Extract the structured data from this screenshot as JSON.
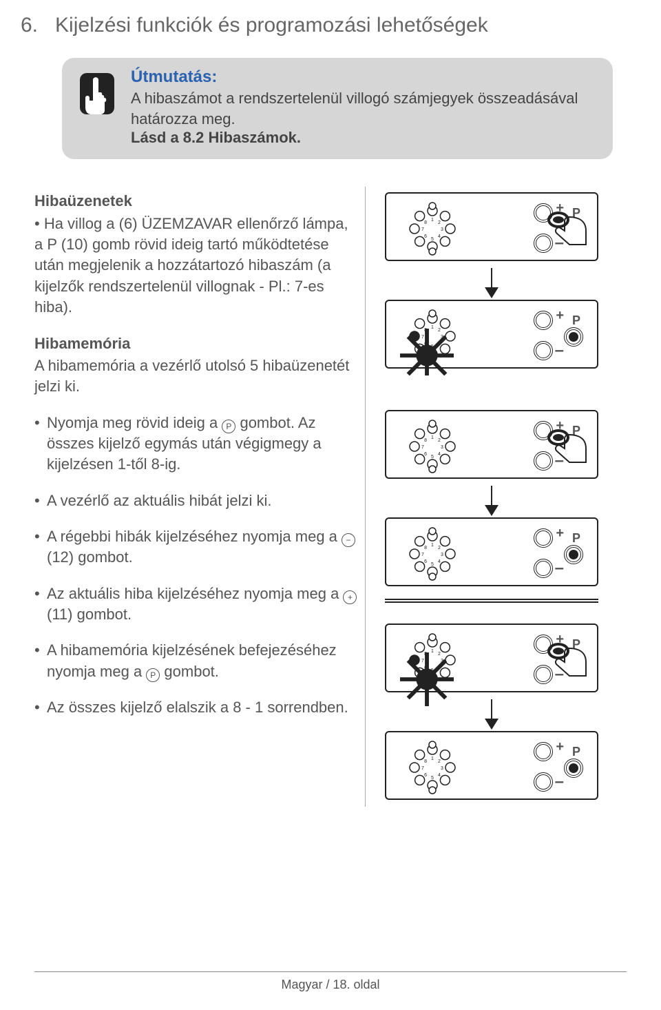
{
  "section_number": "6.",
  "section_title": "Kijelzési funkciók és programozási lehetőségek",
  "hint": {
    "title": "Útmutatás:",
    "body": "A hibaszámot a rendszertelenül villogó számjegyek összeadásával határozza meg.",
    "ref": "Lásd a 8.2 Hibaszámok."
  },
  "left": {
    "h1": "Hibaüzenetek",
    "p1": "• Ha villog a (6) ÜZEMZAVAR ellenőrző lámpa, a P (10) gomb rövid ideig tartó működtetése után megjelenik a hozzátartozó hibaszám (a kijelzők rendszertelenül villognak - Pl.: 7-es hiba).",
    "h2": "Hibamemória",
    "p2": "A hibamemória a vezérlő utolsó 5 hibaüzenetét jelzi ki.",
    "b1a": "Nyomja meg rövid ideig a ",
    "b1b": " gombot. Az összes kijelző egymás után végigmegy a kijelzésen 1-től 8-ig.",
    "b2": "A vezérlő az aktuális hibát jelzi ki.",
    "b3a": "A régebbi hibák kijelzéséhez nyomja meg a ",
    "b3b": " (12) gombot.",
    "b4a": "Az aktuális hiba kijelzéséhez nyomja meg a ",
    "b4b": " (11) gombot.",
    "b5a": "A hibamemória kijelzésének befejezéséhez nyomja meg a ",
    "b5b": " gombot.",
    "b6": "Az összes kijelző elalszik a 8 - 1 sorrendben."
  },
  "dial_numbers": [
    "1",
    "2",
    "3",
    "4",
    "5",
    "6",
    "7",
    "8"
  ],
  "footer": "Magyar / 18. oldal"
}
